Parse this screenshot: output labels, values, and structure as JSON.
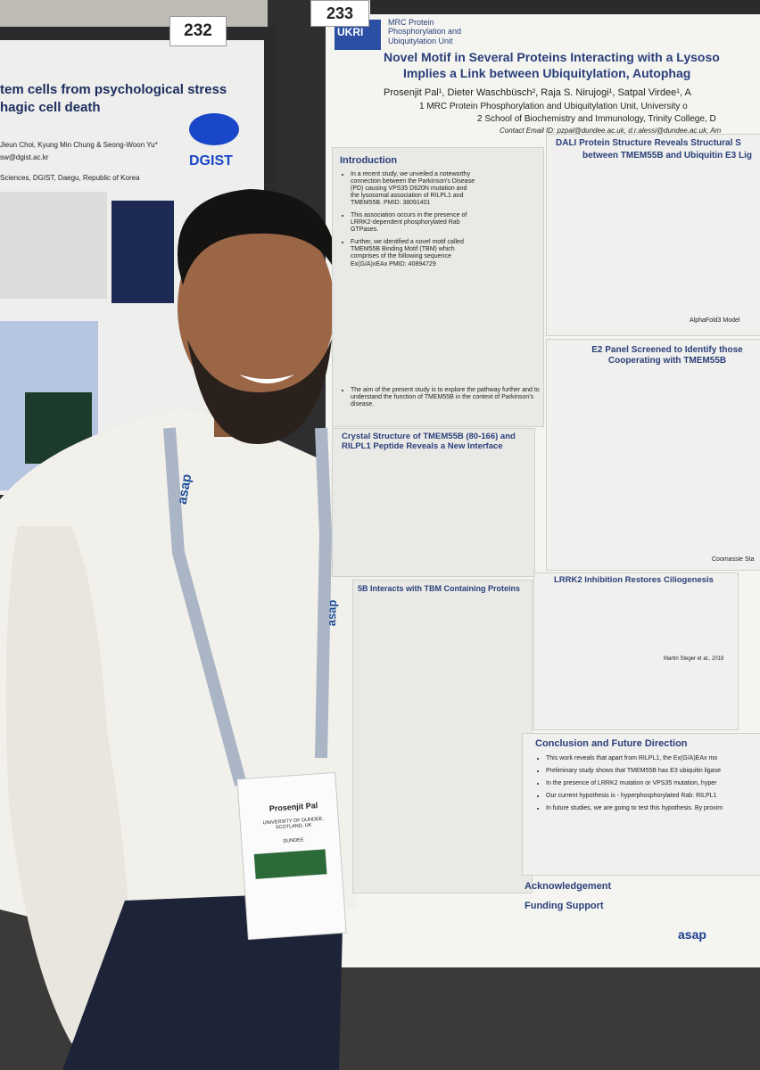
{
  "left_poster": {
    "number": "232",
    "title_lines": [
      "tem cells from psychological stress",
      "hagic cell death"
    ],
    "authors": "Jieun Choi, Kyung Min Chung & Seong-Woon Yu*",
    "email": "sw@dgist.ac.kr",
    "affiliation": "Sciences, DGIST, Daegu, Republic of Korea",
    "logo": "DGIST"
  },
  "right_poster": {
    "number": "233",
    "logo": "UKRI",
    "unit": "MRC Protein Phosphorylation and Ubiquitylation Unit",
    "title_lines": [
      "Novel Motif in Several Proteins Interacting with a Lysoso",
      "Implies a Link between Ubiquitylation, Autophag"
    ],
    "authors": "Prosenjit Pal¹, Dieter Waschbüsch², Raja S. Nirujogi¹, Satpal Virdee¹, A",
    "affiliations": [
      "1 MRC Protein Phosphorylation and Ubiquitylation Unit, University o",
      "2 School of Biochemistry and Immunology, Trinity College, D"
    ],
    "contact": "Contact Email ID: pzpal@dundee.ac.uk, d.r.alessi@dundee.ac.uk, Am",
    "introduction": {
      "heading": "Introduction",
      "bullets": [
        "In a recent study, we unveiled a noteworthy connection between the Parkinson's Disease (PD) causing VPS35 D620N mutation and the lysosomal association of RILPL1 and TMEM55B. PMID: 38091401",
        "This association occurs in the presence of LRRK2-dependent phosphorylated Rab GTPases.",
        "Further, we identified a novel motif called TMEM55B Binding Motif (TBM) which comprises of the following sequence Ex(G/A)xEAx PMID: 40894729",
        "The aim of the present study is to explore the pathway further and to understand the function of TMEM55B in the context of Parkinson's disease."
      ]
    },
    "crystal_heading": "Crystal Structure of TMEM55B (80-166) and RILPL1 Peptide Reveals a New Interface",
    "interacts_heading": "5B Interacts with TBM Containing Proteins",
    "dali_heading": [
      "DALI Protein Structure Reveals Structural S",
      "between TMEM55B and Ubiquitin E3 Lig"
    ],
    "alphafold": "AlphaFold3 Model",
    "e2_heading": "E2 Panel Screened to Identify those Cooperating with TMEM55B",
    "coomassie": "Coomassie Sta",
    "lrrk2_heading": "LRRK2 Inhibition Restores Ciliogenesis",
    "citation": "Martin Steger et al., 2018",
    "conclusion": {
      "heading": "Conclusion and Future Direction",
      "bullets": [
        "This work reveals that apart from RILPL1, the Ex(G/A)EAx mo",
        "Preliminary study shows that TMEM55B has E3 ubiquitin ligase",
        "In the presence of LRRK2 mutation or VPS35 mutation, hyper",
        "Our current hypothesis is - hyperphosphorylated Rab: RILPL1",
        "In future studies, we are going to test this hypothesis. By proxim"
      ]
    },
    "acknowledgement": "Acknowledgement",
    "funding": "Funding Support",
    "funder": "asap"
  },
  "badge": {
    "name": "Prosenjit Pal",
    "institution": "UNIVERSITY OF DUNDEE, SCOTLAND, UK",
    "city": "DUNDEE"
  },
  "lanyard": "asap"
}
